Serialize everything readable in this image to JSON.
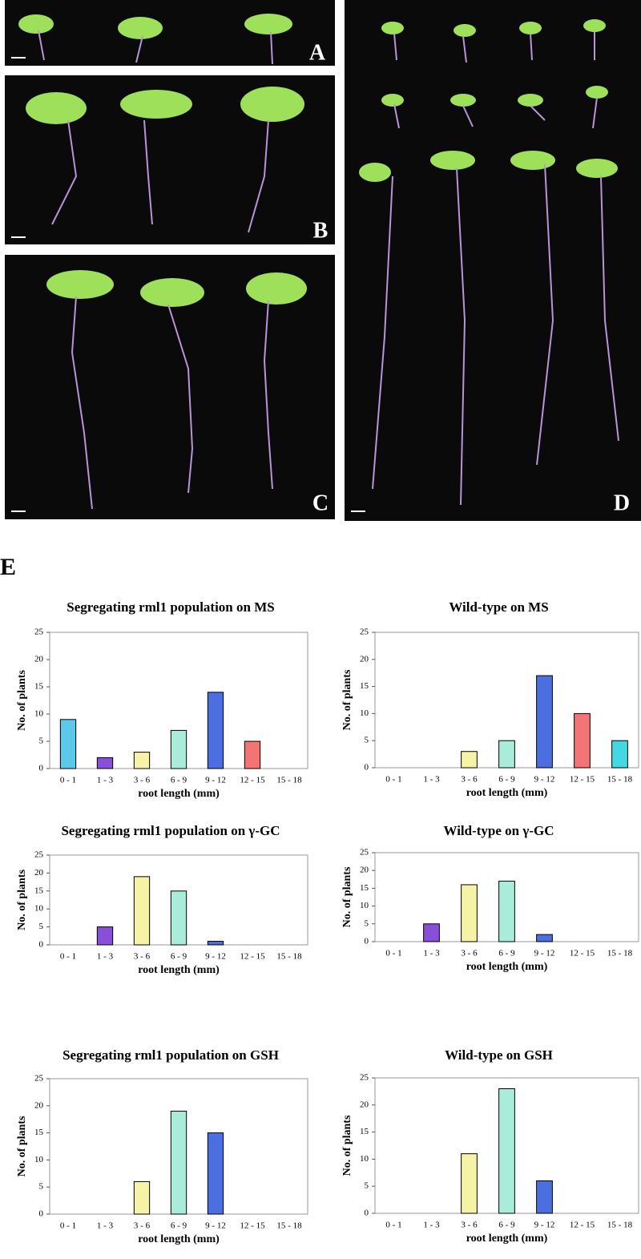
{
  "panels": {
    "photo_labels": [
      "A",
      "B",
      "C",
      "D"
    ],
    "chart_panel_label": "E"
  },
  "chart_data": [
    {
      "type": "bar",
      "title": "Segregating rml1 population on MS",
      "x_label": "root length (mm)",
      "y_label": "No. of plants",
      "categories": [
        "0 - 1",
        "1 - 3",
        "3 - 6",
        "6 - 9",
        "9 - 12",
        "12 - 15",
        "15 - 18"
      ],
      "values": [
        9,
        2,
        3,
        7,
        14,
        5,
        0
      ],
      "colors": [
        "#5cc8ea",
        "#8a4fd8",
        "#f6f2a6",
        "#a9ecd9",
        "#4b6ee0",
        "#f27474",
        "#44d8e2"
      ],
      "ylim": [
        0,
        25
      ],
      "yticks": [
        0,
        5,
        10,
        15,
        20,
        25
      ]
    },
    {
      "type": "bar",
      "title": "Wild-type on MS",
      "x_label": "root length (mm)",
      "y_label": "No. of plants",
      "categories": [
        "0 - 1",
        "1 - 3",
        "3 - 6",
        "6 - 9",
        "9 - 12",
        "12 - 15",
        "15 - 18"
      ],
      "values": [
        0,
        0,
        3,
        5,
        17,
        10,
        5
      ],
      "colors": [
        "#5cc8ea",
        "#8a4fd8",
        "#f6f2a6",
        "#a9ecd9",
        "#4b6ee0",
        "#f27474",
        "#44d8e2"
      ],
      "ylim": [
        0,
        25
      ],
      "yticks": [
        0,
        5,
        10,
        15,
        20,
        25
      ]
    },
    {
      "type": "bar",
      "title": "Segregating rml1 population on γ-GC",
      "x_label": "root length (mm)",
      "y_label": "No. of plants",
      "categories": [
        "0 - 1",
        "1 - 3",
        "3 - 6",
        "6 - 9",
        "9 - 12",
        "12 - 15",
        "15 - 18"
      ],
      "values": [
        0,
        5,
        19,
        15,
        1,
        0,
        0
      ],
      "colors": [
        "#5cc8ea",
        "#8a4fd8",
        "#f6f2a6",
        "#a9ecd9",
        "#4b6ee0",
        "#f27474",
        "#44d8e2"
      ],
      "ylim": [
        0,
        25
      ],
      "yticks": [
        0,
        5,
        10,
        15,
        20,
        25
      ]
    },
    {
      "type": "bar",
      "title": "Wild-type on γ-GC",
      "x_label": "root length (mm)",
      "y_label": "No. of plants",
      "categories": [
        "0 - 1",
        "1 - 3",
        "3 - 6",
        "6 - 9",
        "9 - 12",
        "12 - 15",
        "15 - 18"
      ],
      "values": [
        0,
        5,
        16,
        17,
        2,
        0,
        0
      ],
      "colors": [
        "#5cc8ea",
        "#8a4fd8",
        "#f6f2a6",
        "#a9ecd9",
        "#4b6ee0",
        "#f27474",
        "#44d8e2"
      ],
      "ylim": [
        0,
        25
      ],
      "yticks": [
        0,
        5,
        10,
        15,
        20,
        25
      ]
    },
    {
      "type": "bar",
      "title": "Segregating rml1 population on GSH",
      "x_label": "root length (mm)",
      "y_label": "No. of plants",
      "categories": [
        "0 - 1",
        "1 - 3",
        "3 - 6",
        "6 - 9",
        "9 - 12",
        "12 - 15",
        "15 - 18"
      ],
      "values": [
        0,
        0,
        6,
        19,
        15,
        0,
        0
      ],
      "colors": [
        "#5cc8ea",
        "#8a4fd8",
        "#f6f2a6",
        "#a9ecd9",
        "#4b6ee0",
        "#f27474",
        "#44d8e2"
      ],
      "ylim": [
        0,
        25
      ],
      "yticks": [
        0,
        5,
        10,
        15,
        20,
        25
      ]
    },
    {
      "type": "bar",
      "title": "Wild-type on GSH",
      "x_label": "root length (mm)",
      "y_label": "No. of plants",
      "categories": [
        "0 - 1",
        "1 - 3",
        "3 - 6",
        "6 - 9",
        "9 - 12",
        "12 - 15",
        "15 - 18"
      ],
      "values": [
        0,
        0,
        11,
        23,
        6,
        0,
        0
      ],
      "colors": [
        "#5cc8ea",
        "#8a4fd8",
        "#f6f2a6",
        "#a9ecd9",
        "#4b6ee0",
        "#f27474",
        "#44d8e2"
      ],
      "ylim": [
        0,
        25
      ],
      "yticks": [
        0,
        5,
        10,
        15,
        20,
        25
      ]
    }
  ]
}
